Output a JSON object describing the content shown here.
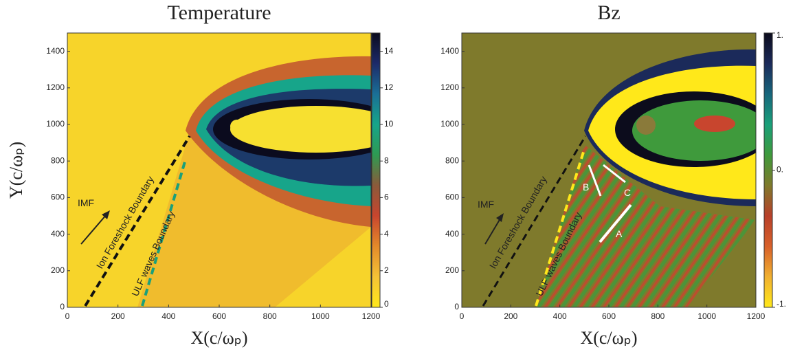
{
  "chart_data": [
    {
      "type": "heatmap",
      "title": "Temperature",
      "xlabel": "X(c/ωₚ)",
      "ylabel": "Y(c/ωₚ)",
      "xlim": [
        0,
        1200
      ],
      "ylim": [
        0,
        1500
      ],
      "xticks": [
        0,
        200,
        400,
        600,
        800,
        1000,
        1200
      ],
      "yticks": [
        0,
        200,
        400,
        600,
        800,
        1000,
        1200,
        1400
      ],
      "clim": [
        0,
        15
      ],
      "cticks": [
        0,
        2,
        4,
        6,
        8,
        10,
        12,
        14
      ],
      "colormap": [
        "#ffe81a",
        "#f5c236",
        "#e48a2a",
        "#c8452e",
        "#8a5a3a",
        "#2e9a52",
        "#17a58a",
        "#1a6f96",
        "#1c2a6a",
        "#0b0b1e"
      ],
      "annotations": [
        "IMF",
        "Ion Foreshock Boundary",
        "ULF waves Boundary"
      ]
    },
    {
      "type": "heatmap",
      "title": "Bz",
      "xlabel": "X(c/ωₚ)",
      "xlim": [
        0,
        1200
      ],
      "ylim": [
        0,
        1500
      ],
      "xticks": [
        0,
        200,
        400,
        600,
        800,
        1000,
        1200
      ],
      "yticks": [
        0,
        200,
        400,
        600,
        800,
        1000,
        1200,
        1400
      ],
      "clim": [
        -1,
        1
      ],
      "cticks": [
        {
          "value": -1,
          "label": "-1."
        },
        {
          "value": 0,
          "label": "0."
        },
        {
          "value": 1,
          "label": "1."
        }
      ],
      "colormap": [
        "#ffe81a",
        "#f0b030",
        "#d8602a",
        "#b8402a",
        "#7f7a2c",
        "#3f9a3c",
        "#1aa07a",
        "#17667c",
        "#1b2a5a",
        "#0c0c1c"
      ],
      "annotations": [
        "IMF",
        "Ion Foreshock Boundary",
        "ULF waves Boundary",
        "A",
        "B",
        "C"
      ]
    }
  ]
}
